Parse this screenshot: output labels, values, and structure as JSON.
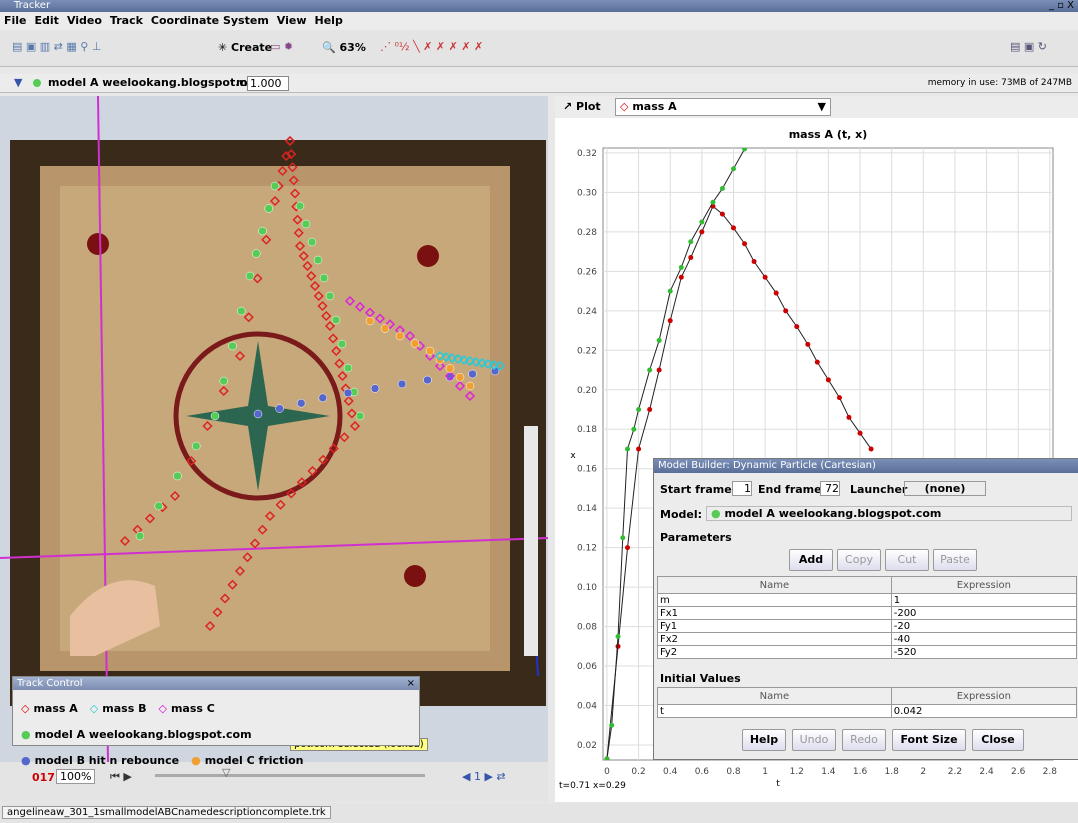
{
  "window": {
    "title": "Tracker"
  },
  "menu": [
    "File",
    "Edit",
    "Video",
    "Track",
    "Coordinate System",
    "View",
    "Help"
  ],
  "toolbar": {
    "create": "Create",
    "zoom": "63%"
  },
  "trackbar": {
    "track": "model A weelookang.blogspot.com",
    "mass_label": "m",
    "mass": "1.000",
    "memory": "memory in use: 73MB of 247MB"
  },
  "plot": {
    "button": "Plot",
    "track": "mass A",
    "title": "mass A (t, x)",
    "x_label": "t",
    "y_label": "x",
    "readout": "t=0.71  x=0.29",
    "xlim": [
      -0.025,
      2.82
    ],
    "ylim": [
      0.0124,
      0.3225
    ],
    "xticks": [
      0,
      0.2,
      0.4,
      0.6,
      0.8,
      1.0,
      1.2,
      1.4,
      1.6,
      1.8,
      2.0,
      2.2,
      2.4,
      2.6,
      2.8
    ],
    "yticks": [
      0.02,
      0.04,
      0.06,
      0.08,
      {
        "value": 0.1,
        "label": "0.10"
      },
      0.12,
      0.14,
      0.16,
      0.18,
      {
        "value": 0.2,
        "label": "0.20"
      },
      0.22,
      0.24,
      0.26,
      0.28,
      {
        "value": 0.3,
        "label": "0.30"
      },
      0.32
    ],
    "grid": true,
    "series": [
      {
        "color": "#cc0000",
        "x": [
          0,
          0.07,
          0.13,
          0.2,
          0.27,
          0.33,
          0.4,
          0.47,
          0.53,
          0.6,
          0.67,
          0.73,
          0.8,
          0.87,
          0.93,
          1.0,
          1.07,
          1.13,
          1.2,
          1.27,
          1.33,
          1.4,
          1.47,
          1.53,
          1.6,
          1.67
        ],
        "values": [
          0.013,
          0.07,
          0.12,
          0.17,
          0.19,
          0.21,
          0.235,
          0.257,
          0.267,
          0.28,
          0.293,
          0.289,
          0.282,
          0.274,
          0.265,
          0.257,
          0.249,
          0.24,
          0.232,
          0.223,
          0.214,
          0.205,
          0.196,
          0.186,
          0.178,
          0.17
        ]
      },
      {
        "color": "#33bb33",
        "x": [
          0,
          0.03,
          0.07,
          0.1,
          0.13,
          0.17,
          0.2,
          0.27,
          0.33,
          0.4,
          0.47,
          0.53,
          0.6,
          0.67,
          0.73,
          0.8,
          0.87
        ],
        "values": [
          0.013,
          0.03,
          0.075,
          0.125,
          0.17,
          0.18,
          0.19,
          0.21,
          0.225,
          0.25,
          0.262,
          0.275,
          0.285,
          0.295,
          0.302,
          0.312,
          0.322
        ]
      }
    ]
  },
  "model_builder": {
    "title": "Model Builder: Dynamic Particle (Cartesian)",
    "start_label": "Start frame",
    "start": 1,
    "end_label": "End frame",
    "end": 72,
    "launcher_label": "Launcher",
    "launcher": "(none)",
    "model_label": "Model:",
    "model": "model A weelookang.blogspot.com",
    "parameters": {
      "title": "Parameters",
      "buttons": [
        "Add",
        "Copy",
        "Cut",
        "Paste"
      ],
      "columns": [
        "Name",
        "Expression"
      ],
      "rows": [
        [
          "m",
          "1"
        ],
        [
          "Fx1",
          "-200"
        ],
        [
          "Fy1",
          "-20"
        ],
        [
          "Fx2",
          "-40"
        ],
        [
          "Fy2",
          "-520"
        ]
      ]
    },
    "initial": {
      "title": "Initial Values",
      "columns": [
        "Name",
        "Expression"
      ],
      "rows": [
        [
          "t",
          "0.042"
        ]
      ]
    },
    "buttons": [
      "Help",
      "Undo",
      "Redo",
      "Font Size",
      "Close"
    ]
  },
  "track_control": {
    "title": "Track Control",
    "tracks": [
      {
        "name": "mass A",
        "color": "#dd0000",
        "shape": "diamond"
      },
      {
        "name": "mass B",
        "color": "#22cccc",
        "shape": "diamond"
      },
      {
        "name": "mass C",
        "color": "#dd00dd",
        "shape": "diamond"
      },
      {
        "name": "model A weelookang.blogspot.com",
        "color": "#55cc55",
        "shape": "circle"
      },
      {
        "name": "model B hit n rebounce",
        "color": "#5566cc",
        "shape": "circle"
      },
      {
        "name": "model C friction",
        "color": "#f0a030",
        "shape": "circle"
      }
    ]
  },
  "player": {
    "frame": "017",
    "rate": "100%",
    "status": "pot.com selected (locked)"
  },
  "file_tab": "angelineaw_301_1smallmodelABCnamedescriptioncomplete.trk"
}
